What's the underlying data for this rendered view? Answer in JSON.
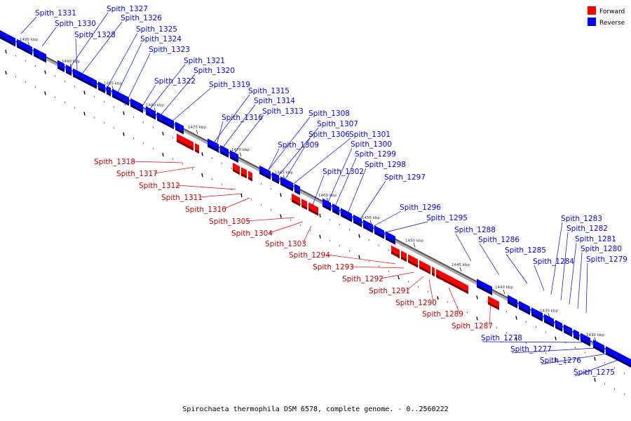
{
  "caption": "Spirochaeta thermophila DSM 6578, complete genome. - 0..2560222",
  "legend": [
    {
      "label": "Forward",
      "color": "#ff0000"
    },
    {
      "label": "Reverse",
      "color": "#0000ff"
    }
  ],
  "colors": {
    "forward": "#ff0000",
    "reverse": "#0000ff",
    "backbone": "#888888"
  },
  "ticks": [
    "1495 kbp",
    "1490 kbp",
    "1485 kbp",
    "1480 kbp",
    "1475 kbp",
    "1470 kbp",
    "1465 kbp",
    "1460 kbp",
    "1455 kbp",
    "1450 kbp",
    "1445 kbp",
    "1440 kbp",
    "1435 kbp",
    "1430 kbp"
  ],
  "reverse_genes": [
    "Spith_1331",
    "Spith_1330",
    "Spith_1327",
    "Spith_1326",
    "Spith_1328",
    "Spith_1325",
    "Spith_1324",
    "Spith_1323",
    "Spith_1321",
    "Spith_1320",
    "Spith_1322",
    "Spith_1319",
    "Spith_1315",
    "Spith_1314",
    "Spith_1316",
    "Spith_1313",
    "Spith_1308",
    "Spith_1307",
    "Spith_1306",
    "Spith_1301",
    "Spith_1309",
    "Spith_1300",
    "Spith_1299",
    "Spith_1298",
    "Spith_1302",
    "Spith_1297",
    "Spith_1296",
    "Spith_1295",
    "Spith_1288",
    "Spith_1286",
    "Spith_1285",
    "Spith_1284",
    "Spith_1283",
    "Spith_1282",
    "Spith_1281",
    "Spith_1280",
    "Spith_1279",
    "Spith_1278",
    "Spith_1277",
    "Spith_1276",
    "Spith_1275"
  ],
  "forward_genes": [
    "Spith_1318",
    "Spith_1317",
    "Spith_1312",
    "Spith_1311",
    "Spith_1310",
    "Spith_1305",
    "Spith_1304",
    "Spith_1303",
    "Spith_1294",
    "Spith_1293",
    "Spith_1292",
    "Spith_1291",
    "Spith_1290",
    "Spith_1289",
    "Spith_1287"
  ]
}
